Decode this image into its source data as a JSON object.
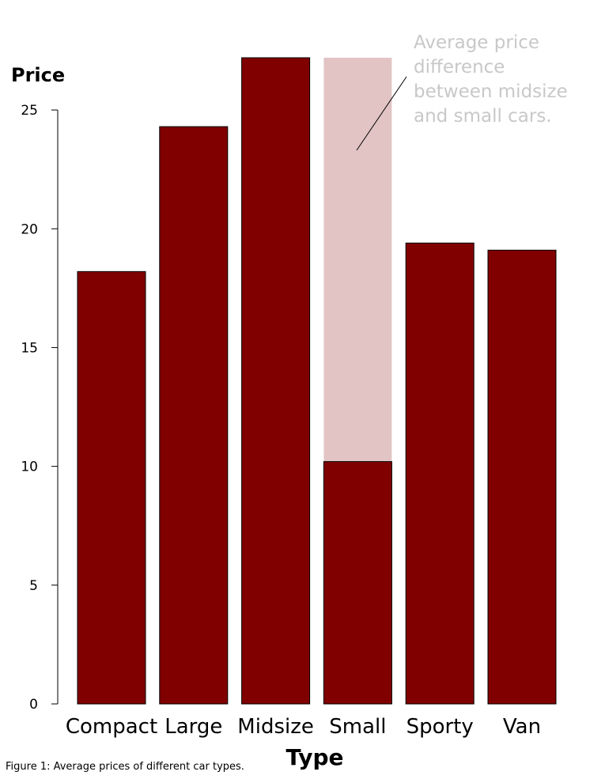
{
  "chart_data": {
    "type": "bar",
    "categories": [
      "Compact",
      "Large",
      "Midsize",
      "Small",
      "Sporty",
      "Van"
    ],
    "values": [
      18.2,
      24.3,
      27.2,
      10.2,
      19.4,
      19.1
    ],
    "highlight": {
      "category": "Small",
      "from": 10.2,
      "to": 27.2,
      "color": "#e2c4c4"
    },
    "xlabel": "Type",
    "ylabel": "Price",
    "ylim": [
      0,
      27.2
    ],
    "yticks": [
      0,
      5,
      10,
      15,
      20,
      25
    ],
    "bar_color": "#800000",
    "annotation": {
      "lines": [
        "Average price",
        "difference",
        "between midsize",
        "and small cars."
      ],
      "color": "#c8c8c8"
    },
    "grid": false,
    "legend": "none"
  },
  "caption": "Figure 1: Average prices of different car types."
}
